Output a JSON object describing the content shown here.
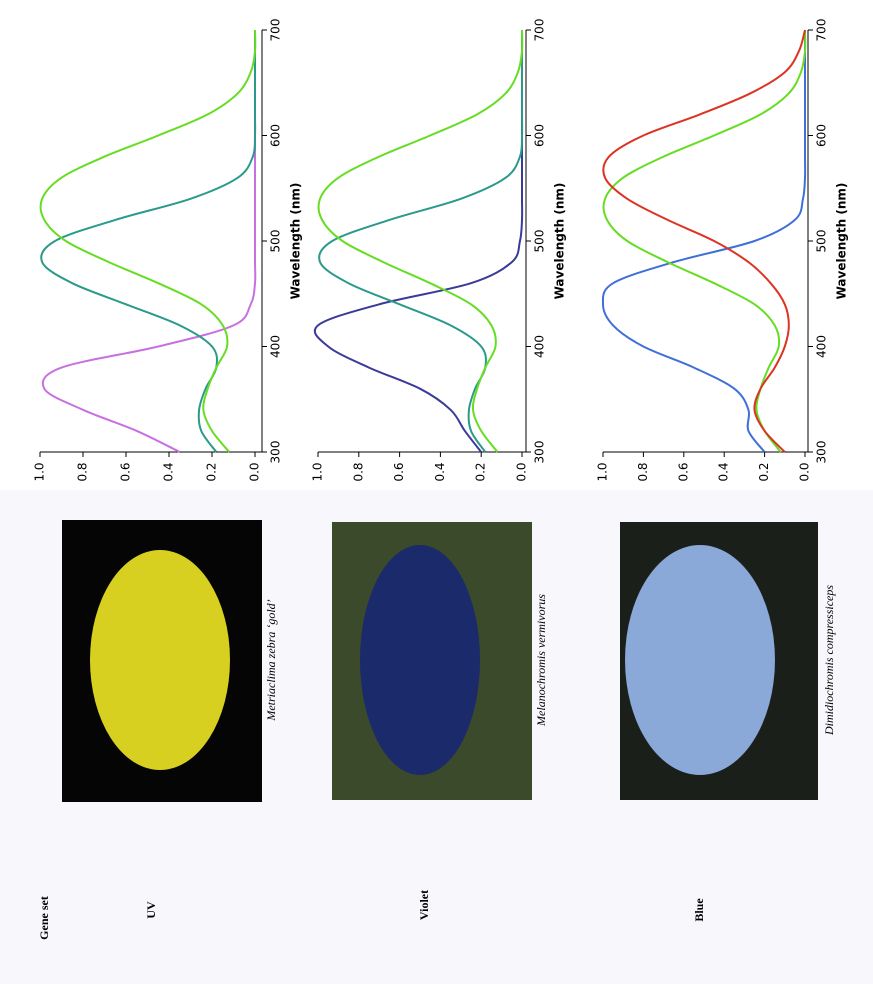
{
  "gene_set_header": "Gene set",
  "rows": [
    {
      "label": "UV",
      "caption": "Metriaclima zebra ‘gold’"
    },
    {
      "label": "Violet",
      "caption": "Melanochromis vermivorus"
    },
    {
      "label": "Blue",
      "caption": "Dimidiochromis  compressiceps"
    }
  ],
  "chart_data": [
    {
      "type": "line",
      "x_label": "Wavelength (nm)",
      "x": [
        300,
        320,
        340,
        360,
        380,
        400,
        420,
        440,
        460,
        480,
        500,
        520,
        540,
        560,
        580,
        600,
        620,
        640,
        660,
        680,
        700
      ],
      "xlim": [
        300,
        700
      ],
      "xticks": [
        300,
        400,
        500,
        600,
        700
      ],
      "ylim": [
        0,
        1
      ],
      "yticks": [
        {
          "value": 0,
          "label": "0.0"
        },
        0.2,
        0.4,
        0.6,
        0.8,
        {
          "value": 1,
          "label": "1.0"
        }
      ],
      "series": [
        {
          "color": "#c870e0",
          "values": [
            0.35,
            0.55,
            0.8,
            0.98,
            0.9,
            0.45,
            0.1,
            0.02,
            0,
            0,
            0,
            0,
            0,
            0,
            0,
            0,
            0,
            0,
            0,
            0,
            0
          ]
        },
        {
          "color": "#2a9a8a",
          "values": [
            0.18,
            0.25,
            0.26,
            0.23,
            0.18,
            0.2,
            0.35,
            0.6,
            0.85,
            0.99,
            0.93,
            0.65,
            0.3,
            0.08,
            0.01,
            0,
            0,
            0,
            0,
            0,
            0
          ]
        },
        {
          "color": "#66dd22",
          "values": [
            0.12,
            0.2,
            0.24,
            0.22,
            0.18,
            0.13,
            0.15,
            0.25,
            0.45,
            0.68,
            0.88,
            0.98,
            0.99,
            0.9,
            0.7,
            0.45,
            0.22,
            0.08,
            0.02,
            0,
            0
          ]
        }
      ]
    },
    {
      "type": "line",
      "x_label": "Wavelength (nm)",
      "x": [
        300,
        320,
        340,
        360,
        380,
        400,
        420,
        440,
        460,
        480,
        500,
        520,
        540,
        560,
        580,
        600,
        620,
        640,
        660,
        680,
        700
      ],
      "xlim": [
        300,
        700
      ],
      "xticks": [
        300,
        400,
        500,
        600,
        700
      ],
      "ylim": [
        0,
        1
      ],
      "yticks": [
        {
          "value": 0,
          "label": "0.0"
        },
        0.2,
        0.4,
        0.6,
        0.8,
        {
          "value": 1,
          "label": "1.0"
        }
      ],
      "series": [
        {
          "color": "#3a3a9a",
          "values": [
            0.2,
            0.28,
            0.35,
            0.5,
            0.75,
            0.95,
            1.0,
            0.7,
            0.25,
            0.05,
            0.01,
            0,
            0,
            0,
            0,
            0,
            0,
            0,
            0,
            0,
            0
          ]
        },
        {
          "color": "#2a9a8a",
          "values": [
            0.18,
            0.25,
            0.26,
            0.23,
            0.18,
            0.2,
            0.35,
            0.6,
            0.85,
            0.99,
            0.93,
            0.65,
            0.3,
            0.08,
            0.01,
            0,
            0,
            0,
            0,
            0,
            0
          ]
        },
        {
          "color": "#66dd22",
          "values": [
            0.12,
            0.2,
            0.24,
            0.22,
            0.18,
            0.13,
            0.15,
            0.25,
            0.45,
            0.68,
            0.88,
            0.98,
            0.99,
            0.9,
            0.7,
            0.45,
            0.22,
            0.08,
            0.02,
            0,
            0
          ]
        }
      ]
    },
    {
      "type": "line",
      "x_label": "Wavelength (nm)",
      "x": [
        300,
        320,
        340,
        360,
        380,
        400,
        420,
        440,
        460,
        480,
        500,
        520,
        540,
        560,
        580,
        600,
        620,
        640,
        660,
        680,
        700
      ],
      "xlim": [
        300,
        700
      ],
      "xticks": [
        300,
        400,
        500,
        600,
        700
      ],
      "ylim": [
        0,
        1
      ],
      "yticks": [
        {
          "value": 0,
          "label": "0.0"
        },
        0.2,
        0.4,
        0.6,
        0.8,
        {
          "value": 1,
          "label": "1.0"
        }
      ],
      "series": [
        {
          "color": "#3f6fd8",
          "values": [
            0.2,
            0.28,
            0.28,
            0.35,
            0.55,
            0.8,
            0.95,
            1.0,
            0.95,
            0.65,
            0.25,
            0.05,
            0.01,
            0,
            0,
            0,
            0,
            0,
            0,
            0,
            0
          ]
        },
        {
          "color": "#66dd22",
          "values": [
            0.12,
            0.2,
            0.24,
            0.22,
            0.18,
            0.13,
            0.15,
            0.25,
            0.45,
            0.68,
            0.88,
            0.98,
            0.99,
            0.9,
            0.7,
            0.45,
            0.22,
            0.08,
            0.02,
            0,
            0
          ]
        },
        {
          "color": "#dd3322",
          "values": [
            0.1,
            0.2,
            0.25,
            0.22,
            0.15,
            0.1,
            0.08,
            0.1,
            0.17,
            0.28,
            0.45,
            0.68,
            0.88,
            0.99,
            0.97,
            0.8,
            0.52,
            0.27,
            0.1,
            0.03,
            0
          ]
        }
      ]
    }
  ]
}
